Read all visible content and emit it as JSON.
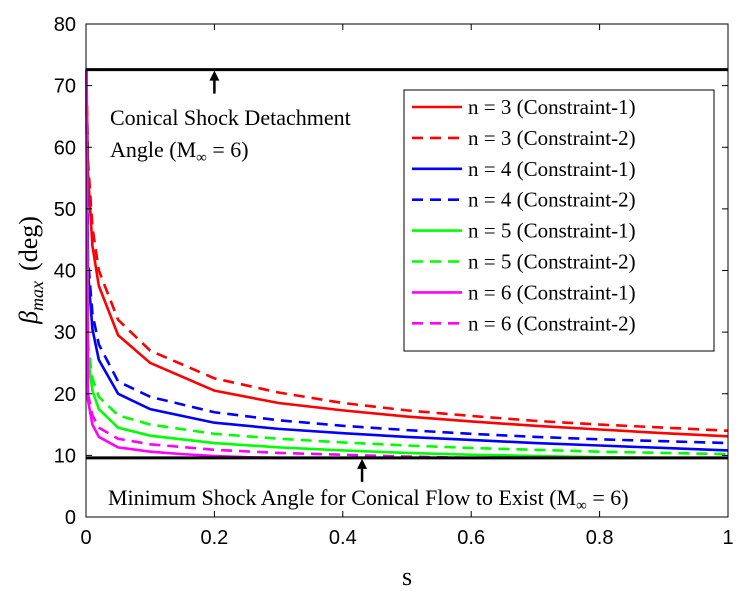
{
  "chart_data": {
    "type": "line",
    "xlabel": "s",
    "ylabel": "β",
    "ylabel_sub": "max",
    "ylabel_unit": "(deg)",
    "xlim": [
      0,
      1
    ],
    "ylim": [
      0,
      80
    ],
    "xticks": [
      0,
      0.2,
      0.4,
      0.6,
      0.8,
      1
    ],
    "xtick_labels": [
      "0",
      "0.2",
      "0.4",
      "0.6",
      "0.8",
      "1"
    ],
    "yticks": [
      0,
      10,
      20,
      30,
      40,
      50,
      60,
      70,
      80
    ],
    "ytick_labels": [
      "0",
      "10",
      "20",
      "30",
      "40",
      "50",
      "60",
      "70",
      "80"
    ],
    "grid": false,
    "legend_position": "top-right",
    "reference_lines": [
      {
        "name": "detachment",
        "y": 72.6,
        "label_line1": "Conical Shock Detachment",
        "label_line2": "Angle (M",
        "label_sub": "∞",
        "label_tail": " = 6)",
        "arrow_x": 0.2
      },
      {
        "name": "minimum",
        "y": 9.6,
        "label_line1": "Minimum Shock Angle for Conical Flow to Exist (M",
        "label_sub": "∞",
        "label_tail": " = 6)",
        "arrow_x": 0.43
      }
    ],
    "series": [
      {
        "name": "n = 3 (Constraint-1)",
        "color": "#ff0000",
        "dash": "solid",
        "x": [
          0.0005,
          0.003,
          0.01,
          0.02,
          0.05,
          0.1,
          0.2,
          0.3,
          0.4,
          0.5,
          0.6,
          0.7,
          0.8,
          0.9,
          1.0
        ],
        "y": [
          72.6,
          56,
          44,
          37.5,
          29.5,
          25,
          20.5,
          18.5,
          17.3,
          16.3,
          15.5,
          14.8,
          14.2,
          13.6,
          13.1
        ]
      },
      {
        "name": "n = 3 (Constraint-2)",
        "color": "#ff0000",
        "dash": "dashed",
        "x": [
          0.0005,
          0.003,
          0.01,
          0.02,
          0.05,
          0.1,
          0.2,
          0.3,
          0.4,
          0.5,
          0.6,
          0.7,
          0.8,
          0.9,
          1.0
        ],
        "y": [
          72.6,
          58,
          47,
          40,
          32,
          27,
          22.5,
          20.2,
          18.5,
          17.3,
          16.4,
          15.6,
          15,
          14.5,
          14
        ]
      },
      {
        "name": "n = 4 (Constraint-1)",
        "color": "#0000ff",
        "dash": "solid",
        "x": [
          0.0005,
          0.003,
          0.01,
          0.02,
          0.05,
          0.1,
          0.2,
          0.3,
          0.4,
          0.5,
          0.6,
          0.7,
          0.8,
          0.9,
          1.0
        ],
        "y": [
          72.6,
          40,
          30.5,
          25.5,
          20,
          17.5,
          15.3,
          14.3,
          13.6,
          13,
          12.5,
          12,
          11.6,
          11.2,
          10.8
        ]
      },
      {
        "name": "n = 4 (Constraint-2)",
        "color": "#0000ff",
        "dash": "dashed",
        "x": [
          0.0005,
          0.003,
          0.01,
          0.02,
          0.05,
          0.1,
          0.2,
          0.3,
          0.4,
          0.5,
          0.6,
          0.7,
          0.8,
          0.9,
          1.0
        ],
        "y": [
          72.6,
          42,
          33,
          28,
          22,
          19.5,
          17,
          15.7,
          14.8,
          14.1,
          13.5,
          13,
          12.6,
          12.3,
          12
        ]
      },
      {
        "name": "n = 5 (Constraint-1)",
        "color": "#00ff00",
        "dash": "solid",
        "x": [
          0.0005,
          0.003,
          0.01,
          0.02,
          0.05,
          0.1,
          0.2,
          0.3,
          0.4,
          0.5,
          0.6,
          0.7,
          0.8,
          0.9,
          1.0
        ],
        "y": [
          72.6,
          26,
          20.5,
          17.5,
          14.5,
          13.2,
          12,
          11.3,
          10.8,
          10.4,
          10.1,
          9.9,
          9.7,
          9.6,
          9.6
        ]
      },
      {
        "name": "n = 5 (Constraint-2)",
        "color": "#00ff00",
        "dash": "dashed",
        "x": [
          0.0005,
          0.003,
          0.01,
          0.02,
          0.05,
          0.1,
          0.2,
          0.3,
          0.4,
          0.5,
          0.6,
          0.7,
          0.8,
          0.9,
          1.0
        ],
        "y": [
          72.6,
          28,
          22.5,
          19.5,
          16.5,
          15,
          13.5,
          12.7,
          12.1,
          11.6,
          11.2,
          10.9,
          10.6,
          10.4,
          10.2
        ]
      },
      {
        "name": "n = 6 (Constraint-1)",
        "color": "#ff00ff",
        "dash": "solid",
        "x": [
          0.0005,
          0.003,
          0.01,
          0.02,
          0.05,
          0.1,
          0.15,
          0.2,
          0.25,
          0.3,
          0.4,
          1.0
        ],
        "y": [
          72.6,
          19,
          15,
          13,
          11.3,
          10.6,
          10.2,
          9.9,
          9.7,
          9.6,
          9.6,
          9.6
        ]
      },
      {
        "name": "n = 6 (Constraint-2)",
        "color": "#ff00ff",
        "dash": "dashed",
        "x": [
          0.0005,
          0.003,
          0.01,
          0.02,
          0.05,
          0.1,
          0.2,
          0.3,
          0.4,
          0.5,
          0.6,
          1.0
        ],
        "y": [
          72.6,
          20,
          16.5,
          14.5,
          12.7,
          11.8,
          10.9,
          10.4,
          10.1,
          9.8,
          9.6,
          9.6
        ]
      }
    ]
  }
}
